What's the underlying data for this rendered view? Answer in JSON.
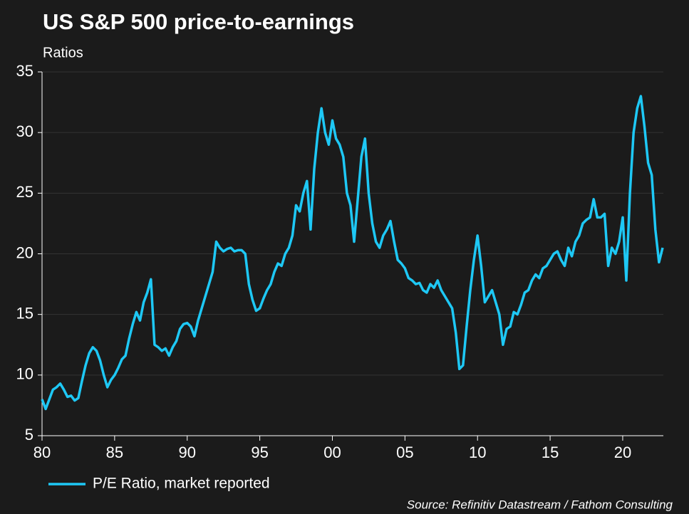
{
  "chart_data": {
    "type": "line",
    "title": "US S&P 500 price-to-earnings",
    "y_label": "Ratios",
    "source": "Source: Refinitiv Datastream / Fathom Consulting",
    "grid": true,
    "legend": "bottom-left",
    "xlim": [
      1980,
      2022.8
    ],
    "xticks": [
      {
        "value": 1980,
        "label": "80"
      },
      {
        "value": 1985,
        "label": "85"
      },
      {
        "value": 1990,
        "label": "90"
      },
      {
        "value": 1995,
        "label": "95"
      },
      {
        "value": 2000,
        "label": "00"
      },
      {
        "value": 2005,
        "label": "05"
      },
      {
        "value": 2010,
        "label": "10"
      },
      {
        "value": 2015,
        "label": "15"
      },
      {
        "value": 2020,
        "label": "20"
      }
    ],
    "ylim": [
      5,
      35
    ],
    "yticks": [
      5,
      10,
      15,
      20,
      25,
      30,
      35
    ],
    "x": [
      1980,
      1980.25,
      1980.5,
      1980.75,
      1981,
      1981.25,
      1981.5,
      1981.75,
      1982,
      1982.25,
      1982.5,
      1982.75,
      1983,
      1983.25,
      1983.5,
      1983.75,
      1984,
      1984.25,
      1984.5,
      1984.75,
      1985,
      1985.25,
      1985.5,
      1985.75,
      1986,
      1986.25,
      1986.5,
      1986.75,
      1987,
      1987.25,
      1987.5,
      1987.75,
      1988,
      1988.25,
      1988.5,
      1988.75,
      1989,
      1989.25,
      1989.5,
      1989.75,
      1990,
      1990.25,
      1990.5,
      1990.75,
      1991,
      1991.25,
      1991.5,
      1991.75,
      1992,
      1992.25,
      1992.5,
      1992.75,
      1993,
      1993.25,
      1993.5,
      1993.75,
      1994,
      1994.25,
      1994.5,
      1994.75,
      1995,
      1995.25,
      1995.5,
      1995.75,
      1996,
      1996.25,
      1996.5,
      1996.75,
      1997,
      1997.25,
      1997.5,
      1997.75,
      1998,
      1998.25,
      1998.5,
      1998.75,
      1999,
      1999.25,
      1999.5,
      1999.75,
      2000,
      2000.25,
      2000.5,
      2000.75,
      2001,
      2001.25,
      2001.5,
      2001.75,
      2002,
      2002.25,
      2002.5,
      2002.75,
      2003,
      2003.25,
      2003.5,
      2003.75,
      2004,
      2004.25,
      2004.5,
      2004.75,
      2005,
      2005.25,
      2005.5,
      2005.75,
      2006,
      2006.25,
      2006.5,
      2006.75,
      2007,
      2007.25,
      2007.5,
      2007.75,
      2008,
      2008.25,
      2008.5,
      2008.75,
      2009,
      2009.25,
      2009.5,
      2009.75,
      2010,
      2010.25,
      2010.5,
      2010.75,
      2011,
      2011.25,
      2011.5,
      2011.75,
      2012,
      2012.25,
      2012.5,
      2012.75,
      2013,
      2013.25,
      2013.5,
      2013.75,
      2014,
      2014.25,
      2014.5,
      2014.75,
      2015,
      2015.25,
      2015.5,
      2015.75,
      2016,
      2016.25,
      2016.5,
      2016.75,
      2017,
      2017.25,
      2017.5,
      2017.75,
      2018,
      2018.25,
      2018.5,
      2018.75,
      2019,
      2019.25,
      2019.5,
      2019.75,
      2020,
      2020.25,
      2020.5,
      2020.75,
      2021,
      2021.25,
      2021.5,
      2021.75,
      2022,
      2022.25,
      2022.5,
      2022.75
    ],
    "series": [
      {
        "name": "P/E Ratio, market reported",
        "color": "#1ec8f5",
        "values": [
          8.0,
          7.2,
          8.0,
          8.8,
          9.0,
          9.3,
          8.8,
          8.2,
          8.3,
          7.9,
          8.1,
          9.5,
          10.8,
          11.8,
          12.3,
          12.0,
          11.2,
          10.0,
          9.0,
          9.6,
          10.0,
          10.6,
          11.3,
          11.6,
          13.0,
          14.2,
          15.2,
          14.5,
          16.0,
          16.8,
          17.9,
          12.5,
          12.3,
          12.0,
          12.2,
          11.6,
          12.3,
          12.8,
          13.8,
          14.2,
          14.3,
          14.0,
          13.2,
          14.5,
          15.5,
          16.5,
          17.5,
          18.5,
          21.0,
          20.5,
          20.2,
          20.4,
          20.5,
          20.2,
          20.3,
          20.3,
          20.0,
          17.5,
          16.2,
          15.3,
          15.5,
          16.3,
          17.0,
          17.5,
          18.5,
          19.2,
          19.0,
          20.0,
          20.5,
          21.5,
          24.0,
          23.5,
          25.0,
          26.0,
          22.0,
          27.0,
          30.0,
          32.0,
          30.0,
          29.0,
          31.0,
          29.5,
          29.0,
          28.0,
          25.0,
          24.0,
          21.0,
          24.5,
          28.0,
          29.5,
          25.0,
          22.5,
          21.0,
          20.5,
          21.5,
          22.0,
          22.7,
          21.0,
          19.5,
          19.2,
          18.8,
          18.0,
          17.8,
          17.5,
          17.6,
          17.0,
          16.8,
          17.5,
          17.2,
          17.8,
          17.0,
          16.5,
          16.0,
          15.5,
          13.5,
          10.5,
          10.8,
          14.0,
          17.0,
          19.5,
          21.5,
          19.0,
          16.0,
          16.5,
          17.0,
          16.0,
          15.0,
          12.5,
          13.8,
          14.0,
          15.2,
          15.0,
          15.8,
          16.8,
          17.0,
          17.8,
          18.3,
          18.0,
          18.8,
          19.0,
          19.5,
          20.0,
          20.2,
          19.5,
          19.0,
          20.5,
          19.8,
          21.0,
          21.5,
          22.5,
          22.8,
          23.0,
          24.5,
          23.0,
          23.0,
          23.3,
          19.0,
          20.5,
          20.0,
          21.0,
          23.0,
          17.8,
          25.0,
          30.0,
          32.0,
          33.0,
          30.5,
          27.5,
          26.5,
          22.0,
          19.3,
          20.5
        ]
      }
    ]
  }
}
